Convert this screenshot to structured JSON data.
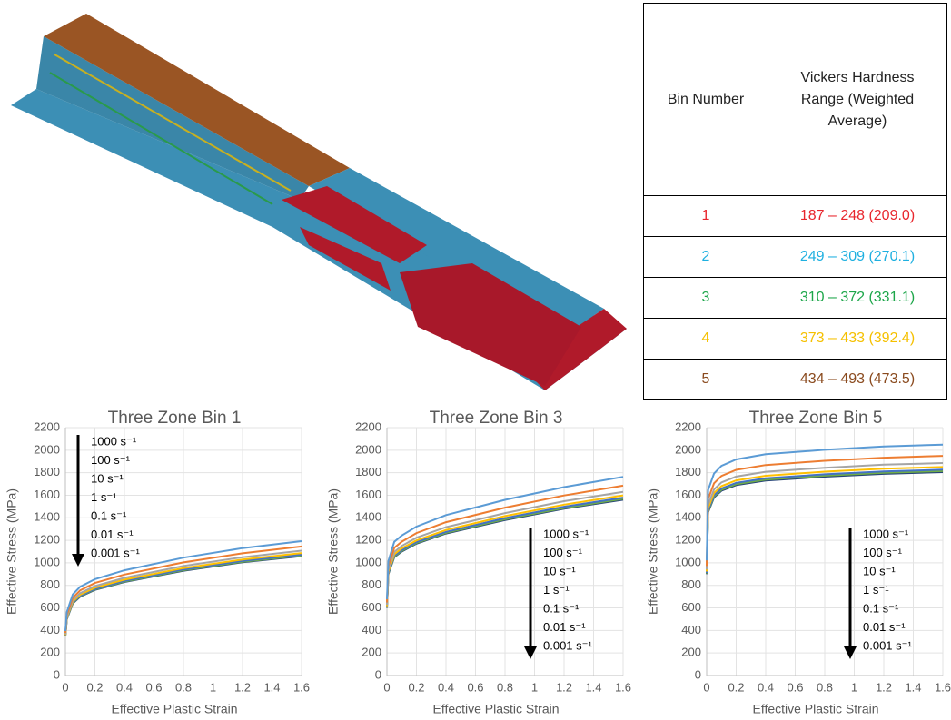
{
  "table": {
    "header": [
      "Bin Number",
      "Vickers Hardness Range (Weighted Average)"
    ],
    "rows": [
      [
        "1",
        "187 – 248 (209.0)"
      ],
      [
        "2",
        "249 – 309 (270.1)"
      ],
      [
        "3",
        "310 – 372 (331.1)"
      ],
      [
        "4",
        "373 – 433 (392.4)"
      ],
      [
        "5",
        "434 – 493 (473.5)"
      ]
    ],
    "row_colors": [
      "#e8262d",
      "#1fb0e0",
      "#1da64a",
      "#f5c000",
      "#8a4a1e"
    ]
  },
  "chart_data": [
    {
      "type": "line",
      "title": "Three Zone Bin 1",
      "x_label": "Effective Plastic Strain",
      "y_label": "Effective Stress (MPa)",
      "xlim": [
        0,
        1.6
      ],
      "xticks": [
        0,
        0.2,
        0.4,
        0.6,
        0.8,
        1,
        1.2,
        1.4,
        1.6
      ],
      "ylim": [
        0,
        2200
      ],
      "yticks": [
        0,
        200,
        400,
        600,
        800,
        1000,
        1200,
        1400,
        1600,
        1800,
        2000,
        2200
      ],
      "grid": true,
      "legend": "upper left",
      "x": [
        0,
        0.01,
        0.05,
        0.1,
        0.2,
        0.4,
        0.8,
        1.2,
        1.6
      ],
      "series": [
        {
          "name": "1000 s⁻¹",
          "color": "#5b9bd5",
          "values": [
            394,
            563,
            720,
            788,
            855,
            934,
            1046,
            1131,
            1193
          ]
        },
        {
          "name": "100 s⁻¹",
          "color": "#ed7d31",
          "values": [
            378,
            540,
            691,
            756,
            821,
            896,
            1004,
            1085,
            1145
          ]
        },
        {
          "name": "10 s⁻¹",
          "color": "#a5a5a5",
          "values": [
            366,
            523,
            669,
            732,
            794,
            867,
            972,
            1050,
            1108
          ]
        },
        {
          "name": "1 s⁻¹",
          "color": "#ffc000",
          "values": [
            359,
            513,
            656,
            718,
            779,
            851,
            953,
            1030,
            1087
          ]
        },
        {
          "name": "0.1 s⁻¹",
          "color": "#4472c4",
          "values": [
            354,
            506,
            648,
            708,
            769,
            840,
            941,
            1017,
            1073
          ]
        },
        {
          "name": "0.01 s⁻¹",
          "color": "#70ad47",
          "values": [
            352,
            503,
            643,
            704,
            764,
            834,
            935,
            1010,
            1065
          ]
        },
        {
          "name": "0.001 s⁻¹",
          "color": "#264478",
          "values": [
            350,
            500,
            640,
            700,
            760,
            830,
            930,
            1005,
            1060
          ]
        }
      ]
    },
    {
      "type": "line",
      "title": "Three Zone Bin 3",
      "x_label": "Effective Plastic Strain",
      "y_label": "Effective Stress (MPa)",
      "xlim": [
        0,
        1.6
      ],
      "xticks": [
        0,
        0.2,
        0.4,
        0.6,
        0.8,
        1,
        1.2,
        1.4,
        1.6
      ],
      "ylim": [
        0,
        2200
      ],
      "yticks": [
        0,
        200,
        400,
        600,
        800,
        1000,
        1200,
        1400,
        1600,
        1800,
        2000,
        2200
      ],
      "grid": true,
      "legend": "lower right",
      "x": [
        0,
        0.01,
        0.05,
        0.1,
        0.2,
        0.4,
        0.8,
        1.2,
        1.6
      ],
      "series": [
        {
          "name": "1000 s⁻¹",
          "color": "#5b9bd5",
          "values": [
            678,
            1017,
            1187,
            1243,
            1322,
            1424,
            1559,
            1672,
            1763
          ]
        },
        {
          "name": "100 s⁻¹",
          "color": "#ed7d31",
          "values": [
            648,
            972,
            1134,
            1188,
            1264,
            1361,
            1490,
            1598,
            1685
          ]
        },
        {
          "name": "10 s⁻¹",
          "color": "#a5a5a5",
          "values": [
            627,
            941,
            1097,
            1150,
            1223,
            1317,
            1442,
            1547,
            1630
          ]
        },
        {
          "name": "1 s⁻¹",
          "color": "#ffc000",
          "values": [
            615,
            923,
            1076,
            1128,
            1199,
            1292,
            1415,
            1517,
            1599
          ]
        },
        {
          "name": "0.1 s⁻¹",
          "color": "#4472c4",
          "values": [
            607,
            911,
            1063,
            1113,
            1184,
            1275,
            1397,
            1498,
            1579
          ]
        },
        {
          "name": "0.01 s⁻¹",
          "color": "#70ad47",
          "values": [
            603,
            905,
            1055,
            1106,
            1176,
            1266,
            1387,
            1487,
            1568
          ]
        },
        {
          "name": "0.001 s⁻¹",
          "color": "#264478",
          "values": [
            600,
            900,
            1050,
            1100,
            1170,
            1260,
            1380,
            1480,
            1560
          ]
        }
      ]
    },
    {
      "type": "line",
      "title": "Three Zone Bin 5",
      "x_label": "Effective Plastic Strain",
      "y_label": "Effective Stress (MPa)",
      "xlim": [
        0,
        1.6
      ],
      "xticks": [
        0,
        0.2,
        0.4,
        0.6,
        0.8,
        1,
        1.2,
        1.4,
        1.6
      ],
      "ylim": [
        0,
        2200
      ],
      "yticks": [
        0,
        200,
        400,
        600,
        800,
        1000,
        1200,
        1400,
        1600,
        1800,
        2000,
        2200
      ],
      "grid": true,
      "legend": "lower right",
      "x": [
        0,
        0.01,
        0.05,
        0.1,
        0.2,
        0.4,
        0.8,
        1.2,
        1.6
      ],
      "series": [
        {
          "name": "1000 s⁻¹",
          "color": "#5b9bd5",
          "values": [
            1022,
            1646,
            1793,
            1861,
            1918,
            1964,
            2003,
            2032,
            2049
          ]
        },
        {
          "name": "100 s⁻¹",
          "color": "#ed7d31",
          "values": [
            972,
            1566,
            1706,
            1771,
            1825,
            1868,
            1906,
            1933,
            1949
          ]
        },
        {
          "name": "10 s⁻¹",
          "color": "#a5a5a5",
          "values": [
            941,
            1515,
            1651,
            1714,
            1766,
            1808,
            1844,
            1871,
            1886
          ]
        },
        {
          "name": "1 s⁻¹",
          "color": "#ffc000",
          "values": [
            923,
            1486,
            1620,
            1681,
            1732,
            1773,
            1809,
            1835,
            1850
          ]
        },
        {
          "name": "0.1 s⁻¹",
          "color": "#4472c4",
          "values": [
            911,
            1467,
            1599,
            1660,
            1710,
            1751,
            1786,
            1811,
            1827
          ]
        },
        {
          "name": "0.01 s⁻¹",
          "color": "#70ad47",
          "values": [
            905,
            1457,
            1588,
            1648,
            1698,
            1739,
            1774,
            1799,
            1814
          ]
        },
        {
          "name": "0.001 s⁻¹",
          "color": "#264478",
          "values": [
            900,
            1450,
            1580,
            1640,
            1690,
            1730,
            1765,
            1790,
            1805
          ]
        }
      ]
    }
  ]
}
